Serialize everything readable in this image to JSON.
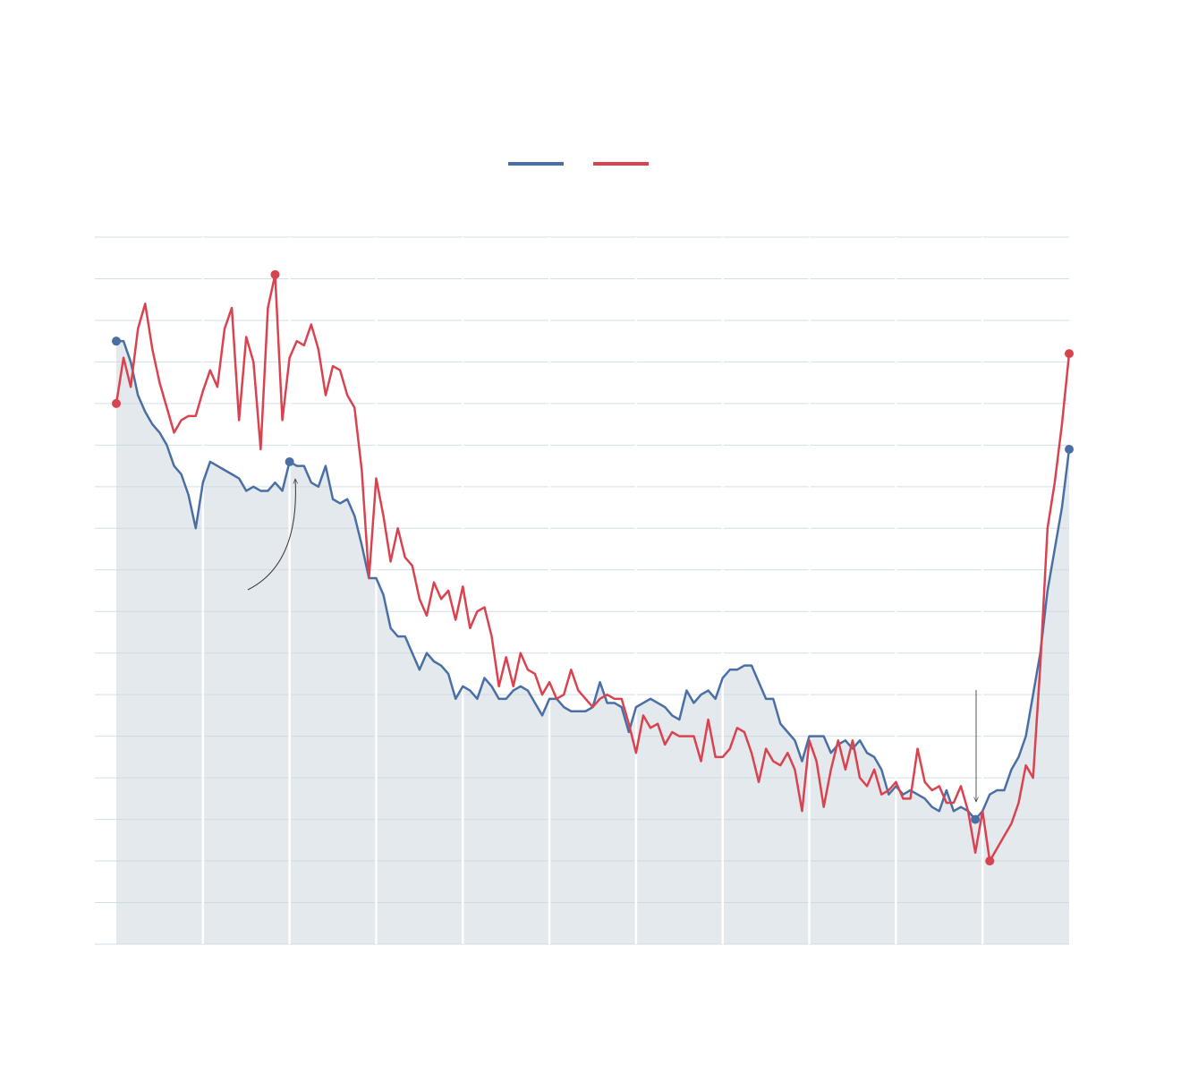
{
  "chart_data": {
    "type": "line",
    "x": [
      0,
      1,
      2,
      3,
      4,
      5,
      6,
      7,
      8,
      9,
      10,
      11,
      12,
      13,
      14,
      15,
      16,
      17,
      18,
      19,
      20,
      21,
      22,
      23,
      24,
      25,
      26,
      27,
      28,
      29,
      30,
      31,
      32,
      33,
      34,
      35,
      36,
      37,
      38,
      39,
      40,
      41,
      42,
      43,
      44,
      45,
      46,
      47,
      48,
      49,
      50,
      51,
      52,
      53,
      54,
      55,
      56,
      57,
      58,
      59,
      60,
      61,
      62,
      63,
      64,
      65,
      66,
      67,
      68,
      69,
      70,
      71,
      72,
      73,
      74,
      75,
      76,
      77,
      78,
      79,
      80,
      81,
      82,
      83,
      84,
      85,
      86,
      87,
      88,
      89,
      90,
      91,
      92,
      93,
      94,
      95,
      96,
      97,
      98,
      99,
      100,
      101,
      102,
      103,
      104,
      105,
      106,
      107,
      108,
      109,
      110,
      111,
      112,
      113,
      114,
      115,
      116,
      117,
      118,
      119,
      120,
      121,
      122,
      123,
      124,
      125,
      126,
      127,
      128,
      129,
      130,
      131,
      132
    ],
    "xlim": [
      0,
      132
    ],
    "xticks": [
      12,
      24,
      36,
      48,
      60,
      72,
      84,
      96,
      108,
      120
    ],
    "ylim": [
      0,
      17
    ],
    "yticks": [
      0,
      1,
      2,
      3,
      4,
      5,
      6,
      7,
      8,
      9,
      10,
      11,
      12,
      13,
      14,
      15,
      16,
      17
    ],
    "grid": true,
    "area_color": "#e3e9ed",
    "series": [
      {
        "color": "#4a6fa5",
        "fill_area": true,
        "highlight": [
          0,
          24,
          119,
          132
        ],
        "values": [
          14.5,
          14.5,
          14.0,
          13.2,
          12.8,
          12.5,
          12.3,
          12.0,
          11.5,
          11.3,
          10.8,
          10.0,
          11.1,
          11.6,
          11.5,
          11.4,
          11.3,
          11.2,
          10.9,
          11.0,
          10.9,
          10.9,
          11.1,
          10.9,
          11.6,
          11.5,
          11.5,
          11.1,
          11.0,
          11.5,
          10.7,
          10.6,
          10.7,
          10.3,
          9.6,
          8.8,
          8.8,
          8.4,
          7.6,
          7.4,
          7.4,
          7.0,
          6.6,
          7.0,
          6.8,
          6.7,
          6.5,
          5.9,
          6.2,
          6.1,
          5.9,
          6.4,
          6.2,
          5.9,
          5.9,
          6.1,
          6.2,
          6.1,
          5.8,
          5.5,
          5.9,
          5.9,
          5.7,
          5.6,
          5.6,
          5.6,
          5.7,
          6.3,
          5.8,
          5.8,
          5.7,
          5.1,
          5.7,
          5.8,
          5.9,
          5.8,
          5.7,
          5.5,
          5.4,
          6.1,
          5.8,
          6.0,
          6.1,
          5.9,
          6.4,
          6.6,
          6.6,
          6.7,
          6.7,
          6.3,
          5.9,
          5.9,
          5.3,
          5.1,
          4.9,
          4.4,
          5.0,
          5.0,
          5.0,
          4.6,
          4.8,
          4.9,
          4.7,
          4.9,
          4.6,
          4.5,
          4.2,
          3.6,
          3.8,
          3.6,
          3.7,
          3.6,
          3.5,
          3.3,
          3.2,
          3.7,
          3.2,
          3.3,
          3.2,
          3.0,
          3.2,
          3.6,
          3.7,
          3.7,
          4.2,
          4.5,
          5.0,
          6.0,
          7.0,
          8.5,
          9.5,
          10.5,
          11.9
        ]
      },
      {
        "color": "#d9434f",
        "highlight": [
          0,
          22,
          121,
          132
        ],
        "values": [
          13.0,
          14.1,
          13.4,
          14.8,
          15.4,
          14.3,
          13.5,
          12.9,
          12.3,
          12.6,
          12.7,
          12.7,
          13.3,
          13.8,
          13.4,
          14.8,
          15.3,
          12.6,
          14.6,
          14.0,
          11.9,
          15.3,
          16.1,
          12.6,
          14.1,
          14.5,
          14.4,
          14.9,
          14.3,
          13.2,
          13.9,
          13.8,
          13.2,
          12.9,
          11.4,
          8.8,
          11.2,
          10.3,
          9.2,
          10.0,
          9.3,
          9.1,
          8.3,
          7.9,
          8.7,
          8.3,
          8.5,
          7.8,
          8.6,
          7.6,
          8.0,
          8.1,
          7.4,
          6.2,
          6.9,
          6.2,
          7.0,
          6.6,
          6.5,
          6.0,
          6.3,
          5.9,
          6.0,
          6.6,
          6.1,
          5.9,
          5.7,
          5.9,
          6.0,
          5.9,
          5.9,
          5.3,
          4.6,
          5.5,
          5.2,
          5.3,
          4.8,
          5.1,
          5.0,
          5.0,
          5.0,
          4.4,
          5.4,
          4.5,
          4.5,
          4.7,
          5.2,
          5.1,
          4.6,
          3.9,
          4.7,
          4.4,
          4.3,
          4.6,
          4.2,
          3.2,
          4.9,
          4.4,
          3.3,
          4.2,
          4.9,
          4.2,
          4.9,
          4.0,
          3.8,
          4.2,
          3.6,
          3.7,
          3.9,
          3.5,
          3.5,
          4.7,
          3.9,
          3.7,
          3.8,
          3.4,
          3.4,
          3.8,
          3.2,
          2.2,
          3.2,
          2.0,
          2.3,
          2.6,
          2.9,
          3.4,
          4.3,
          4.0,
          6.7,
          10.0,
          11.1,
          12.5,
          14.2
        ]
      }
    ]
  }
}
